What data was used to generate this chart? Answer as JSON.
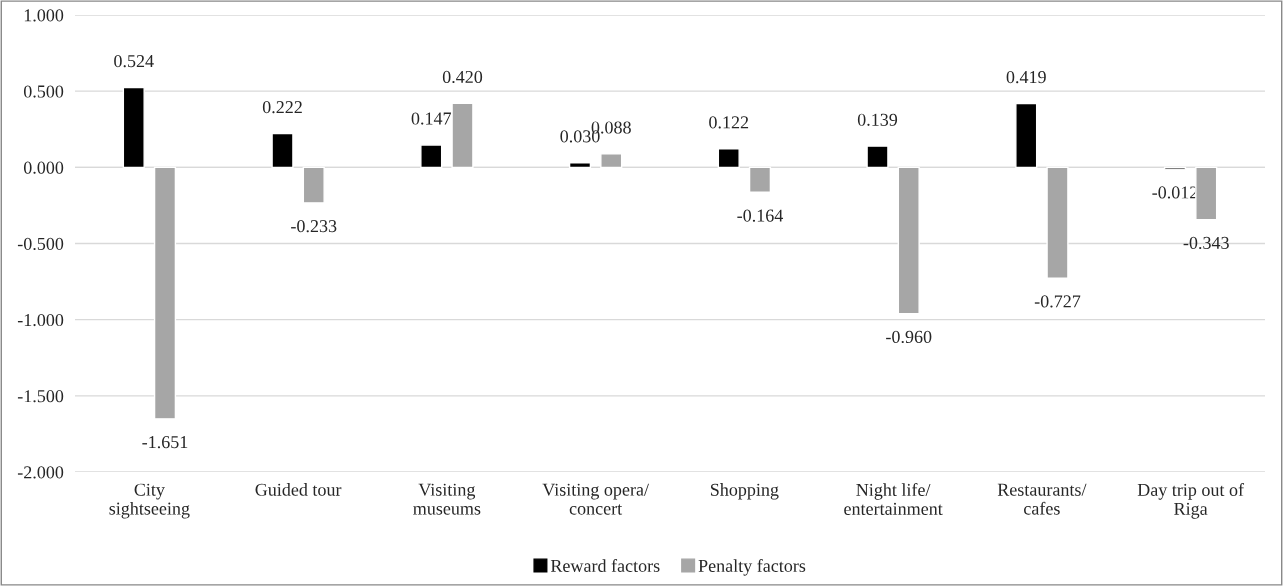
{
  "chart_data": {
    "type": "bar",
    "categories": [
      "City sightseeing",
      "Guided tour",
      "Visiting museums",
      "Visiting opera/ concert",
      "Shopping",
      "Night life/ entertainment",
      "Restaurants/ cafes",
      "Day trip out of Riga"
    ],
    "series": [
      {
        "name": "Reward factors",
        "color": "#000000",
        "values": [
          0.524,
          0.222,
          0.147,
          0.03,
          0.122,
          0.139,
          0.419,
          -0.012
        ],
        "value_labels": [
          "0.524",
          "0.222",
          "0.147",
          "0.030",
          "0.122",
          "0.139",
          "0.419",
          "-0.012"
        ]
      },
      {
        "name": "Penalty factors",
        "color": "#a6a6a6",
        "values": [
          -1.651,
          -0.233,
          0.42,
          0.088,
          -0.164,
          -0.96,
          -0.727,
          -0.343
        ],
        "value_labels": [
          "-1.651",
          "-0.233",
          "0.420",
          "0.088",
          "-0.164",
          "-0.960",
          "-0.727",
          "-0.343"
        ]
      }
    ],
    "ylim": [
      -2,
      1
    ],
    "yticks": [
      {
        "value": -2,
        "label": "-2.000"
      },
      {
        "value": -1.5,
        "label": "-1.500"
      },
      {
        "value": -1,
        "label": "-1.000"
      },
      {
        "value": -0.5,
        "label": "-0.500"
      },
      {
        "value": 0,
        "label": "0.000"
      },
      {
        "value": 0.5,
        "label": "0.500"
      },
      {
        "value": 1,
        "label": "1.000"
      }
    ],
    "grid": "y",
    "legend": "bottom"
  }
}
